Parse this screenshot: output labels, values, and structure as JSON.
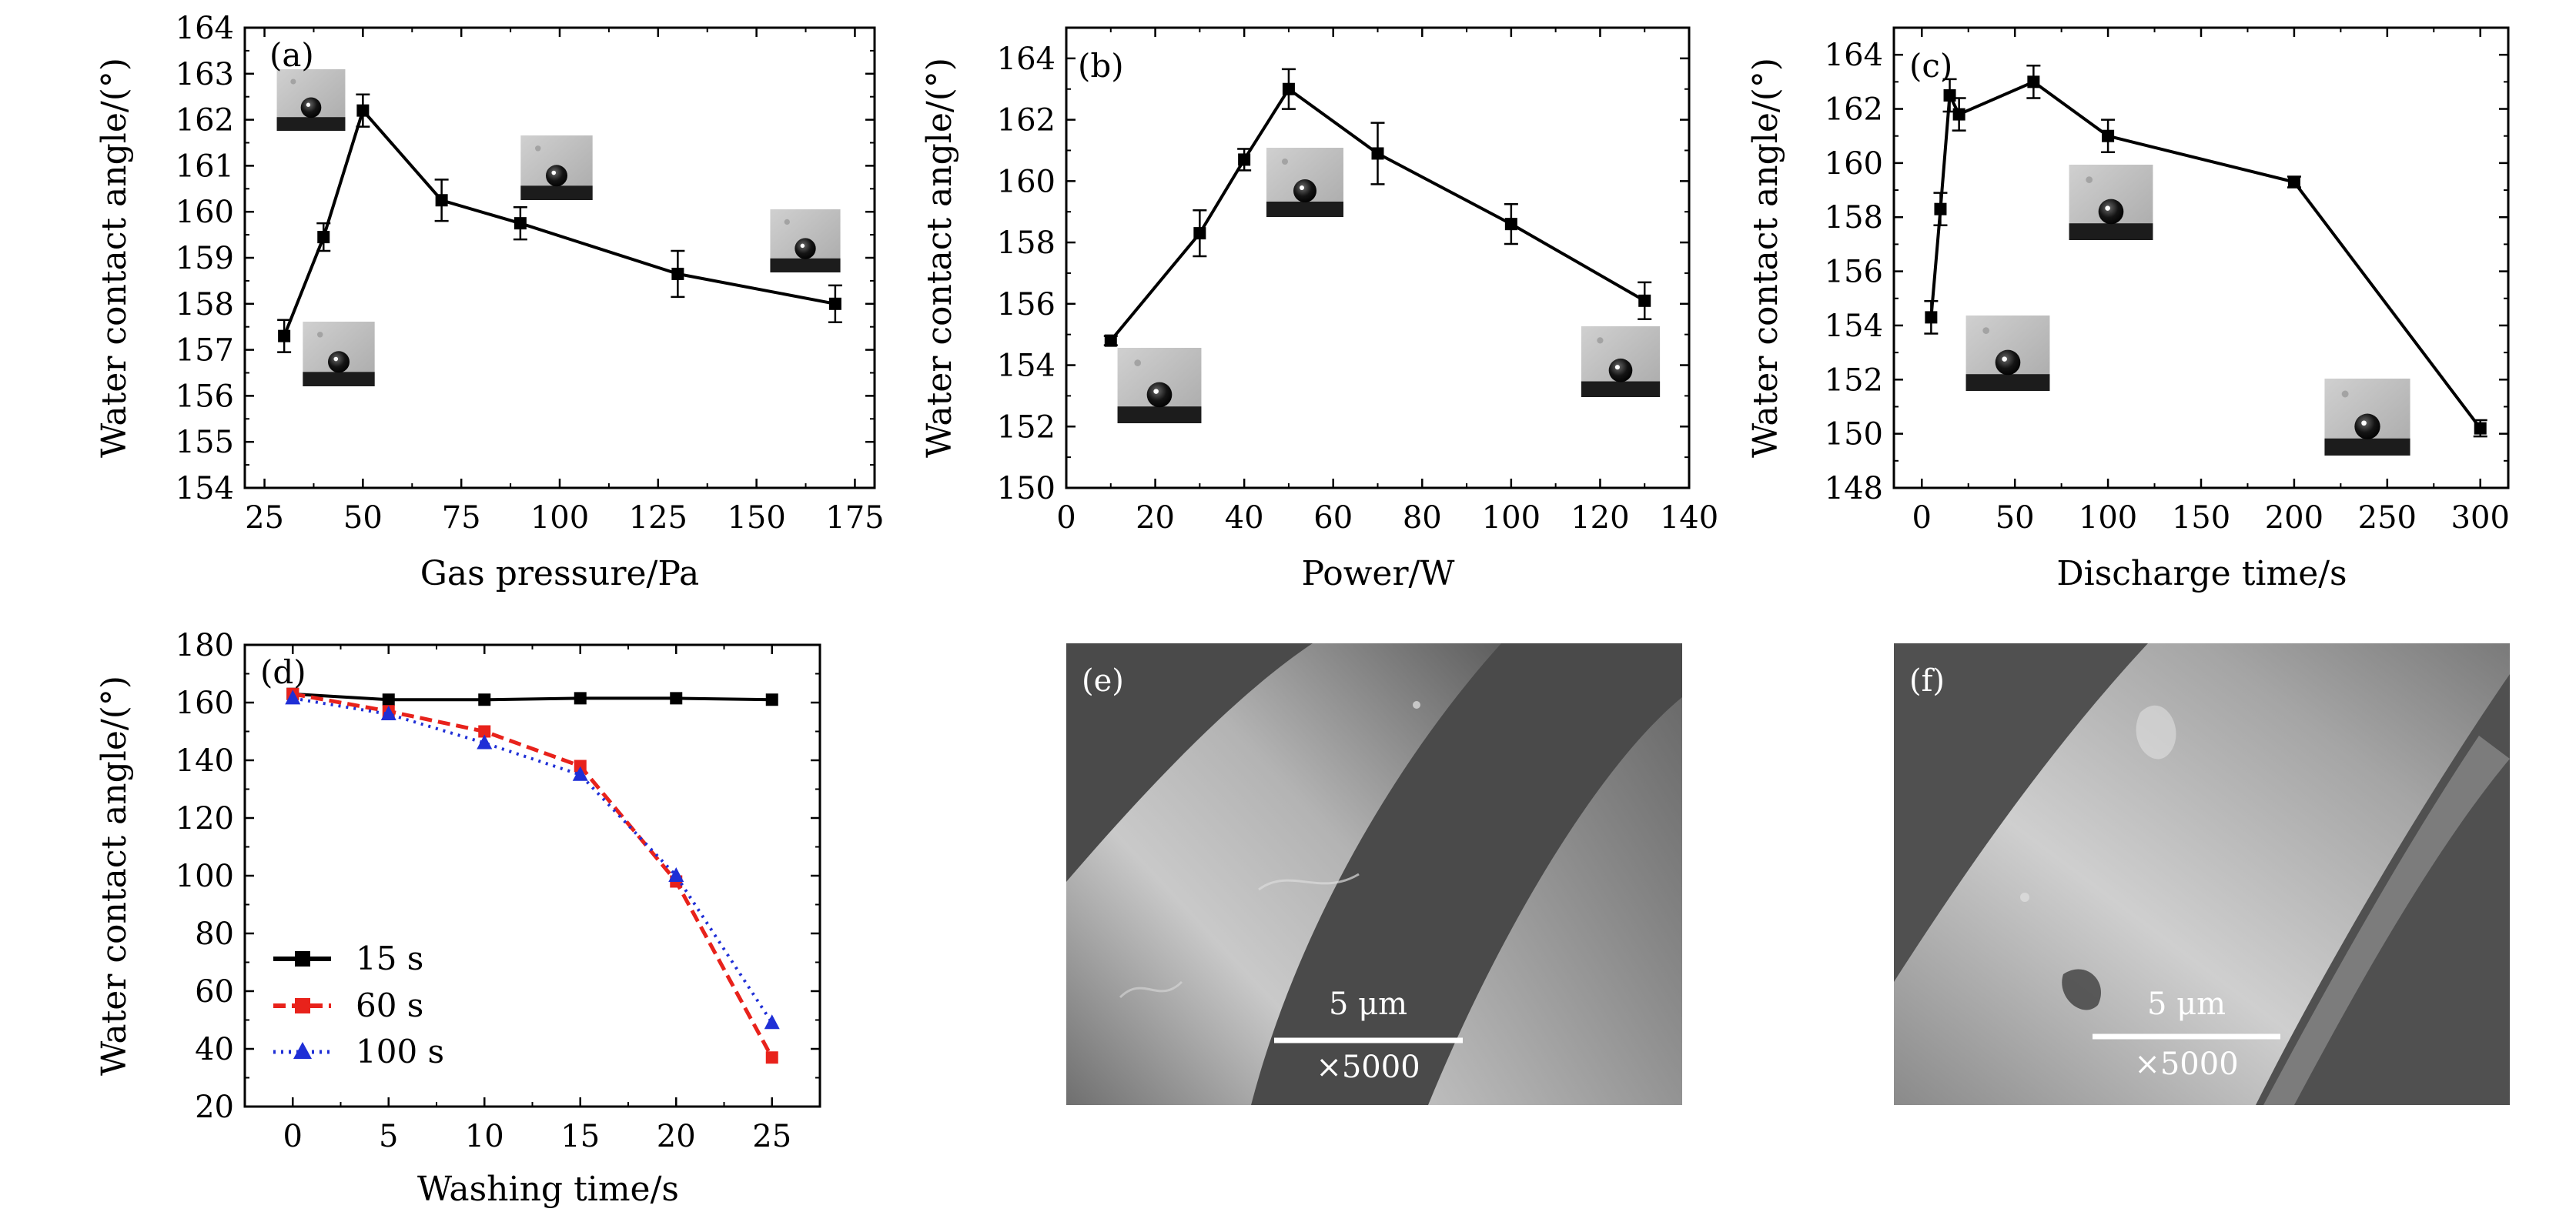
{
  "colors": {
    "black": "#000000",
    "red": "#e8221b",
    "blue": "#1f2fd6",
    "sem_bg": "#4d4d4d"
  },
  "chart_data": [
    {
      "panel": "(a)",
      "type": "line",
      "xlabel": "Gas pressure/Pa",
      "ylabel": "Water contact angle/(°)",
      "xlim": [
        20,
        180
      ],
      "ylim": [
        154,
        164
      ],
      "xticks": [
        25,
        50,
        75,
        100,
        125,
        150,
        175
      ],
      "yticks": [
        154,
        155,
        156,
        157,
        158,
        159,
        160,
        161,
        162,
        163,
        164
      ],
      "series": [
        {
          "name": "",
          "x": [
            30,
            40,
            50,
            70,
            90,
            130,
            170
          ],
          "y": [
            157.3,
            159.45,
            162.2,
            160.25,
            159.75,
            158.65,
            158.0
          ],
          "err": [
            0.35,
            0.3,
            0.35,
            0.45,
            0.35,
            0.5,
            0.4
          ]
        }
      ],
      "insets": [
        "droplet-image",
        "droplet-image",
        "droplet-image",
        "droplet-image"
      ]
    },
    {
      "panel": "(b)",
      "type": "line",
      "xlabel": "Power/W",
      "ylabel": "Water contact angle/(°)",
      "xlim": [
        0,
        140
      ],
      "ylim": [
        150,
        165
      ],
      "xticks": [
        0,
        20,
        40,
        60,
        80,
        100,
        120,
        140
      ],
      "yticks": [
        150,
        152,
        154,
        156,
        158,
        160,
        162,
        164
      ],
      "series": [
        {
          "name": "",
          "x": [
            10,
            30,
            40,
            50,
            70,
            100,
            130
          ],
          "y": [
            154.8,
            158.3,
            160.7,
            163.0,
            160.9,
            158.6,
            156.1
          ],
          "err": [
            0.15,
            0.75,
            0.35,
            0.65,
            1.0,
            0.65,
            0.6
          ]
        }
      ],
      "insets": [
        "droplet-image",
        "droplet-image",
        "droplet-image"
      ]
    },
    {
      "panel": "(c)",
      "type": "line",
      "xlabel": "Discharge time/s",
      "ylabel": "Water contact angle/(°)",
      "xlim": [
        -15,
        315
      ],
      "ylim": [
        148,
        165
      ],
      "xticks": [
        0,
        50,
        100,
        150,
        200,
        250,
        300
      ],
      "yticks": [
        148,
        150,
        152,
        154,
        156,
        158,
        160,
        162,
        164
      ],
      "series": [
        {
          "name": "",
          "x": [
            5,
            10,
            15,
            20,
            60,
            100,
            200,
            300
          ],
          "y": [
            154.3,
            158.3,
            162.5,
            161.8,
            163.0,
            161.0,
            159.3,
            150.2
          ],
          "err": [
            0.6,
            0.6,
            0.6,
            0.6,
            0.6,
            0.6,
            0.2,
            0.3
          ]
        }
      ],
      "insets": [
        "droplet-image",
        "droplet-image",
        "droplet-image"
      ]
    },
    {
      "panel": "(d)",
      "type": "line",
      "xlabel": "Washing time/s",
      "ylabel": "Water contact angle/(°)",
      "xlim": [
        -2.5,
        27.5
      ],
      "ylim": [
        20,
        180
      ],
      "xticks": [
        0,
        5,
        10,
        15,
        20,
        25
      ],
      "yticks": [
        20,
        40,
        60,
        80,
        100,
        120,
        140,
        160,
        180
      ],
      "series": [
        {
          "name": "15 s",
          "x": [
            0,
            5,
            10,
            15,
            20,
            25
          ],
          "y": [
            163,
            161,
            161,
            161.5,
            161.5,
            161
          ]
        },
        {
          "name": "60 s",
          "x": [
            0,
            5,
            10,
            15,
            20,
            25
          ],
          "y": [
            163,
            157,
            150,
            138,
            98,
            37
          ]
        },
        {
          "name": "100 s",
          "x": [
            0,
            5,
            10,
            15,
            20,
            25
          ],
          "y": [
            161.5,
            156,
            146,
            135,
            100,
            49
          ]
        }
      ]
    }
  ],
  "sem": [
    {
      "panel": "(e)",
      "scale": "5 μm",
      "mag": "×5000"
    },
    {
      "panel": "(f)",
      "scale": "5 μm",
      "mag": "×5000"
    }
  ]
}
